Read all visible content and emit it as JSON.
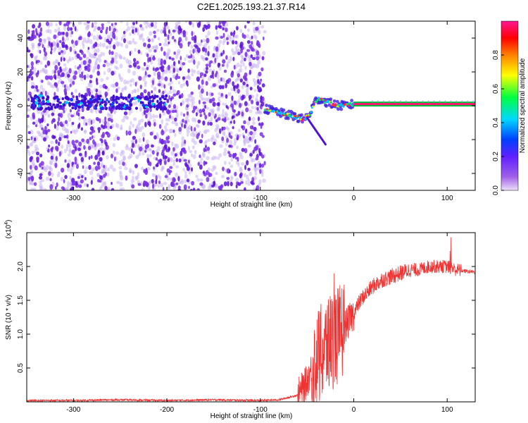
{
  "title": "C2E1.2025.193.21.37.R14",
  "chart_data": [
    {
      "type": "heatmap",
      "xlabel": "Height of straight line (km)",
      "ylabel": "Frequency (Hz)",
      "xlim": [
        -350,
        130
      ],
      "ylim": [
        -50,
        50
      ],
      "x_ticks": [
        -300,
        -200,
        -100,
        0,
        100
      ],
      "y_ticks": [
        -40,
        -20,
        0,
        20,
        40
      ],
      "colorbar_label": "Normalized spectral amplitude",
      "colorbar_ticks": [
        "0.0",
        "0.2",
        "0.4",
        "0.6",
        "0.8"
      ],
      "colorbar_range": [
        0,
        1
      ],
      "colormap": [
        "#e8dcf8",
        "#8a2be2",
        "#1010ff",
        "#00e0ff",
        "#00ff40",
        "#ffff00",
        "#ff0000",
        "#ff1493"
      ],
      "noise_region_x": [
        -350,
        -95
      ],
      "signal_trace": {
        "x": [
          -95,
          -85,
          -75,
          -65,
          -55,
          -48,
          -42,
          -38,
          -33,
          -28,
          -22,
          -15,
          -8,
          0,
          10,
          30,
          60,
          100,
          130
        ],
        "y": [
          -2,
          -3,
          -5,
          -6,
          -8,
          -6,
          2,
          4,
          3,
          2,
          1,
          0,
          0,
          1,
          1,
          1,
          1,
          1,
          1
        ]
      },
      "branch_trace": {
        "x": [
          -50,
          -45,
          -40,
          -35,
          -30
        ],
        "y": [
          -7,
          -11,
          -15,
          -19,
          -23
        ]
      },
      "carrier_line": {
        "x_range": [
          0,
          130
        ],
        "y": 1
      }
    },
    {
      "type": "line",
      "xlabel": "Height of straight line (km)",
      "ylabel": "SNR (10 * v/v)",
      "y_scale_label": "(x10",
      "y_scale_exponent": "4",
      "xlim": [
        -350,
        130
      ],
      "ylim": [
        0,
        2.5
      ],
      "x_ticks": [
        -300,
        -200,
        -100,
        0,
        100
      ],
      "y_ticks": [
        0.5,
        1.0,
        1.5,
        2.0
      ],
      "color": "#ee3333",
      "series": [
        {
          "x": [
            -350,
            -300,
            -250,
            -200,
            -150,
            -100,
            -80,
            -60,
            -55,
            -50,
            -45,
            -40,
            -35,
            -30,
            -25,
            -20,
            -15,
            -10,
            -5,
            0,
            5,
            10,
            20,
            30,
            40,
            50,
            60,
            70,
            80,
            90,
            100,
            110,
            120,
            130
          ],
          "y": [
            0.02,
            0.02,
            0.03,
            0.02,
            0.03,
            0.02,
            0.03,
            0.1,
            0.2,
            0.3,
            0.5,
            0.6,
            0.7,
            0.8,
            0.9,
            0.95,
            1.0,
            1.1,
            1.2,
            1.3,
            1.45,
            1.55,
            1.7,
            1.8,
            1.85,
            1.9,
            1.95,
            1.95,
            2.0,
            2.0,
            2.0,
            1.95,
            1.93,
            1.92
          ]
        }
      ]
    }
  ]
}
